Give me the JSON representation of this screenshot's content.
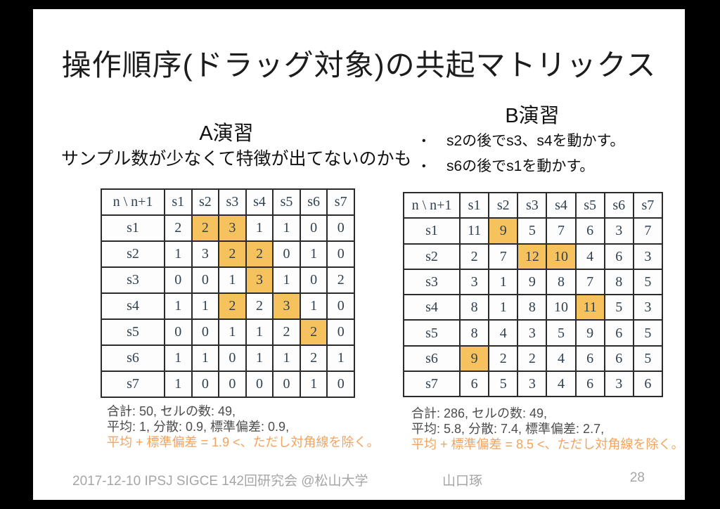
{
  "slide": {
    "title": "操作順序(ドラッグ対象)の共起マトリックス",
    "footer": {
      "left": "2017-12-10 IPSJ SIGCE 142回研究会 @松山大学",
      "center": "山口琢",
      "page_number": "28"
    }
  },
  "left_panel": {
    "heading": "A演習",
    "note": "サンプル数が少なくて特徴が出てないのかも",
    "table": {
      "corner_label": "n \\ n+1",
      "col_headers": [
        "s1",
        "s2",
        "s3",
        "s4",
        "s5",
        "s6",
        "s7"
      ],
      "rows": [
        {
          "label": "s1",
          "values": [
            2,
            2,
            3,
            1,
            1,
            0,
            0
          ],
          "highlighted_cols": [
            1,
            2
          ]
        },
        {
          "label": "s2",
          "values": [
            1,
            3,
            2,
            2,
            0,
            1,
            0
          ],
          "highlighted_cols": [
            2,
            3
          ]
        },
        {
          "label": "s3",
          "values": [
            0,
            0,
            1,
            3,
            1,
            0,
            2
          ],
          "highlighted_cols": [
            3
          ]
        },
        {
          "label": "s4",
          "values": [
            1,
            1,
            2,
            2,
            3,
            1,
            0
          ],
          "highlighted_cols": [
            2,
            4
          ]
        },
        {
          "label": "s5",
          "values": [
            0,
            0,
            1,
            1,
            2,
            2,
            0
          ],
          "highlighted_cols": [
            5
          ]
        },
        {
          "label": "s6",
          "values": [
            1,
            1,
            0,
            1,
            1,
            2,
            1
          ],
          "highlighted_cols": []
        },
        {
          "label": "s7",
          "values": [
            1,
            0,
            0,
            0,
            0,
            1,
            0
          ],
          "highlighted_cols": []
        }
      ]
    },
    "cropped_caption": "合計: 50, セルの数: 49",
    "stats": {
      "line1": "合計: 50, セルの数: 49,",
      "line2": "平均: 1, 分散: 0.9, 標準偏差: 0.9,",
      "highlight": "平均 + 標準偏差 = 1.9 <、ただし対角線を除く。"
    }
  },
  "right_panel": {
    "heading": "B演習",
    "bullet_glyph": "•",
    "bullets": [
      "s2の後でs3、s4を動かす。",
      "s6の後でs1を動かす。"
    ],
    "table": {
      "corner_label": "n \\ n+1",
      "col_headers": [
        "s1",
        "s2",
        "s3",
        "s4",
        "s5",
        "s6",
        "s7"
      ],
      "rows": [
        {
          "label": "s1",
          "values": [
            11,
            9,
            5,
            7,
            6,
            3,
            7
          ],
          "highlighted_cols": [
            1
          ]
        },
        {
          "label": "s2",
          "values": [
            2,
            7,
            12,
            10,
            4,
            6,
            3
          ],
          "highlighted_cols": [
            2,
            3
          ]
        },
        {
          "label": "s3",
          "values": [
            3,
            1,
            9,
            8,
            7,
            8,
            5
          ],
          "highlighted_cols": []
        },
        {
          "label": "s4",
          "values": [
            8,
            1,
            8,
            10,
            11,
            5,
            3
          ],
          "highlighted_cols": [
            4
          ]
        },
        {
          "label": "s5",
          "values": [
            8,
            4,
            3,
            5,
            9,
            6,
            5
          ],
          "highlighted_cols": []
        },
        {
          "label": "s6",
          "values": [
            9,
            2,
            2,
            4,
            6,
            6,
            5
          ],
          "highlighted_cols": [
            0
          ]
        },
        {
          "label": "s7",
          "values": [
            6,
            5,
            3,
            4,
            6,
            3,
            6
          ],
          "highlighted_cols": []
        }
      ]
    },
    "stats": {
      "line1": "合計: 286, セルの数: 49,",
      "line2": "平均: 5.8, 分散: 7.4, 標準偏差: 2.7,",
      "highlight": "平均 + 標準偏差 = 8.5 <、ただし対角線を除く。"
    }
  },
  "colors": {
    "cell_highlight": "#f6c25e",
    "stat_highlight_text": "#f2a45f"
  }
}
